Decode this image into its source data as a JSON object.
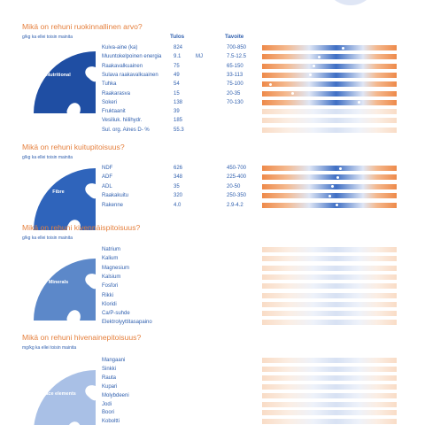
{
  "sections": [
    {
      "title": "Mikä on rehuni ruokinnallinen arvo?",
      "subtitle": "g/kg ka ellei toisin mainita",
      "icon": "Nutritional",
      "columns": [
        "Tulos",
        "Tavoite"
      ],
      "rows": [
        {
          "name": "Kuiva-aine (ka)",
          "result": "824",
          "target": "700-850"
        },
        {
          "name": "Muuntokelpoinen energia",
          "result": "9.1",
          "unit": "MJ",
          "target": "7.5-12.5"
        },
        {
          "name": "Raakavalkuainen",
          "result": "75",
          "target": "65-150"
        },
        {
          "name": "Sulava raakavalkuainen",
          "result": "49",
          "target": "33-113"
        },
        {
          "name": "Tuhka",
          "result": "54",
          "target": "75-100"
        },
        {
          "name": "Raakarasva",
          "result": "15",
          "target": "20-35"
        },
        {
          "name": "Sokeri",
          "result": "138",
          "target": "70-130"
        },
        {
          "name": "Fruktaanit",
          "result": "39"
        },
        {
          "name": "Vesiliuk. hiilihydr.",
          "result": "185"
        },
        {
          "name": "Sul. org. Aines D- %",
          "result": "55.3"
        }
      ]
    },
    {
      "title": "Mikä on rehuni kuitupitoisuus?",
      "subtitle": "g/kg ka ellei toisin mainita",
      "icon": "Fibre",
      "rows": [
        {
          "name": "NDF",
          "result": "626",
          "target": "450-700"
        },
        {
          "name": "ADF",
          "result": "348",
          "target": "225-400"
        },
        {
          "name": "ADL",
          "result": "35",
          "target": "20-50"
        },
        {
          "name": "Raakakuitu",
          "result": "320",
          "target": "250-350"
        },
        {
          "name": "Rakenne",
          "result": "4.0",
          "target": "2.9-4.2"
        }
      ]
    },
    {
      "title": "Mikä on rehuni kivennäispitoisuus?",
      "subtitle": "g/kg ka ellei toisin mainita",
      "icon": "Minerals",
      "rows": [
        {
          "name": "Natrium"
        },
        {
          "name": "Kalium"
        },
        {
          "name": "Magnesium"
        },
        {
          "name": "Kalsium"
        },
        {
          "name": "Fosfori"
        },
        {
          "name": "Rikki"
        },
        {
          "name": "Kloridi"
        },
        {
          "name": "Ca/P-suhde"
        },
        {
          "name": "Elektrolyyttitasapaino"
        }
      ]
    },
    {
      "title": "Mikä on rehuni hivenainepitoisuus?",
      "subtitle": "mg/kg ka ellei toisin mainita",
      "icon": "Trace elements",
      "rows": [
        {
          "name": "Mangaani"
        },
        {
          "name": "Sinkki"
        },
        {
          "name": "Rauta"
        },
        {
          "name": "Kupari"
        },
        {
          "name": "Molybdeeni"
        },
        {
          "name": "Jodi"
        },
        {
          "name": "Boori"
        },
        {
          "name": "Koboltti"
        }
      ]
    }
  ]
}
